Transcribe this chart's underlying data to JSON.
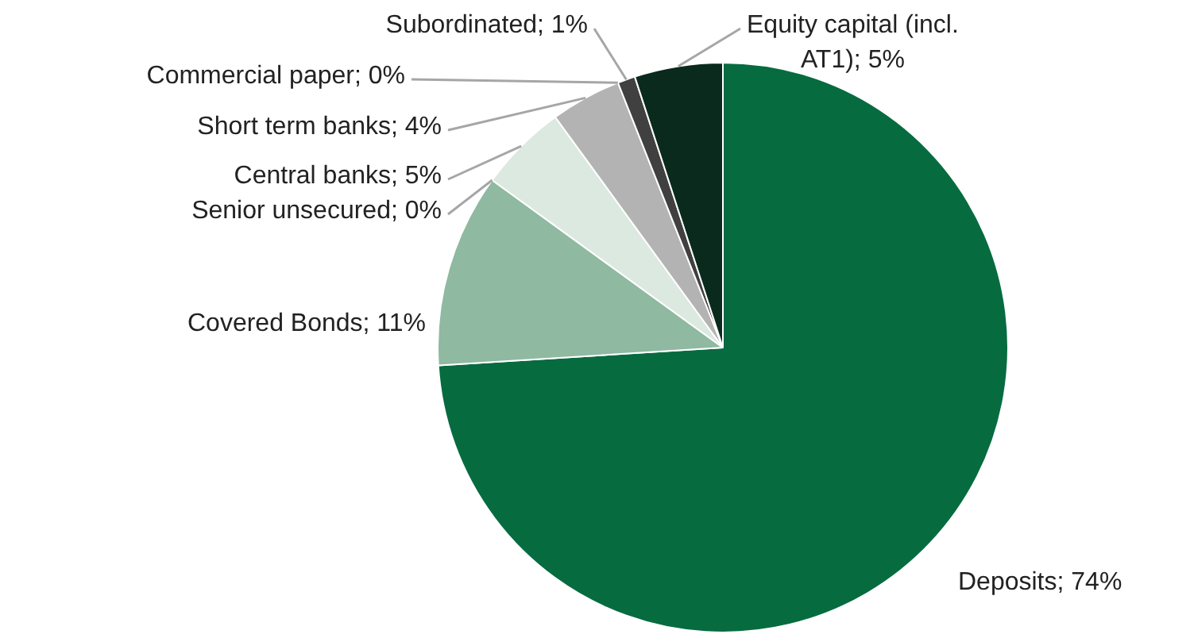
{
  "chart_data": {
    "type": "pie",
    "categories": [
      "Deposits; 74%",
      "Covered Bonds; 11%",
      "Senior unsecured; 0%",
      "Central banks; 5%",
      "Short term banks; 4%",
      "Commercial paper; 0%",
      "Subordinated; 1%",
      "Equity capital (incl. AT1); 5%"
    ],
    "values": [
      74,
      11,
      0,
      5,
      4,
      0,
      1,
      5
    ],
    "colors": [
      "#076b40",
      "#8fb9a0",
      "#c9ddd0",
      "#dce9e0",
      "#b3b3b3",
      "#7f7f7f",
      "#404040",
      "#0b2a1e"
    ]
  }
}
